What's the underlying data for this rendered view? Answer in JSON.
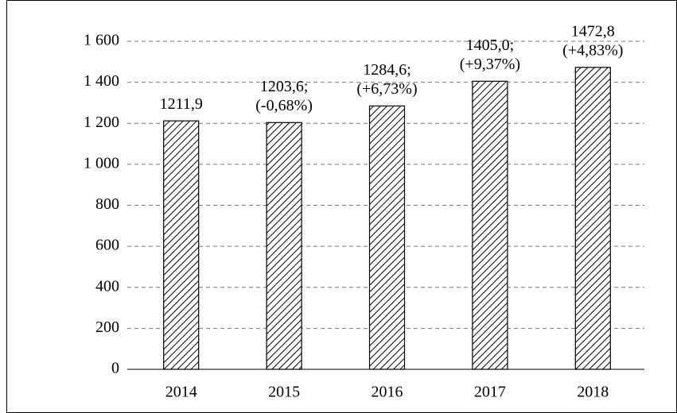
{
  "chart_data": {
    "type": "bar",
    "categories": [
      "2014",
      "2015",
      "2016",
      "2017",
      "2018"
    ],
    "values": [
      1211.9,
      1203.6,
      1284.6,
      1405.0,
      1472.8
    ],
    "value_labels": [
      [
        "1211,9"
      ],
      [
        "1203,6;",
        "(-0,68%)"
      ],
      [
        "1284,6;",
        "(+6,73%)"
      ],
      [
        "1405,0;",
        "(+9,37%)"
      ],
      [
        "1472,8",
        "(+4,83%)"
      ]
    ],
    "color": "#000000",
    "ylim": [
      0,
      1600
    ],
    "yticks": [
      0,
      200,
      400,
      600,
      800,
      {
        "value": 1000,
        "label": "1 000"
      },
      {
        "value": 1200,
        "label": "1 200"
      },
      {
        "value": 1400,
        "label": "1 400"
      },
      {
        "value": 1600,
        "label": "1 600"
      }
    ],
    "grid": true
  }
}
